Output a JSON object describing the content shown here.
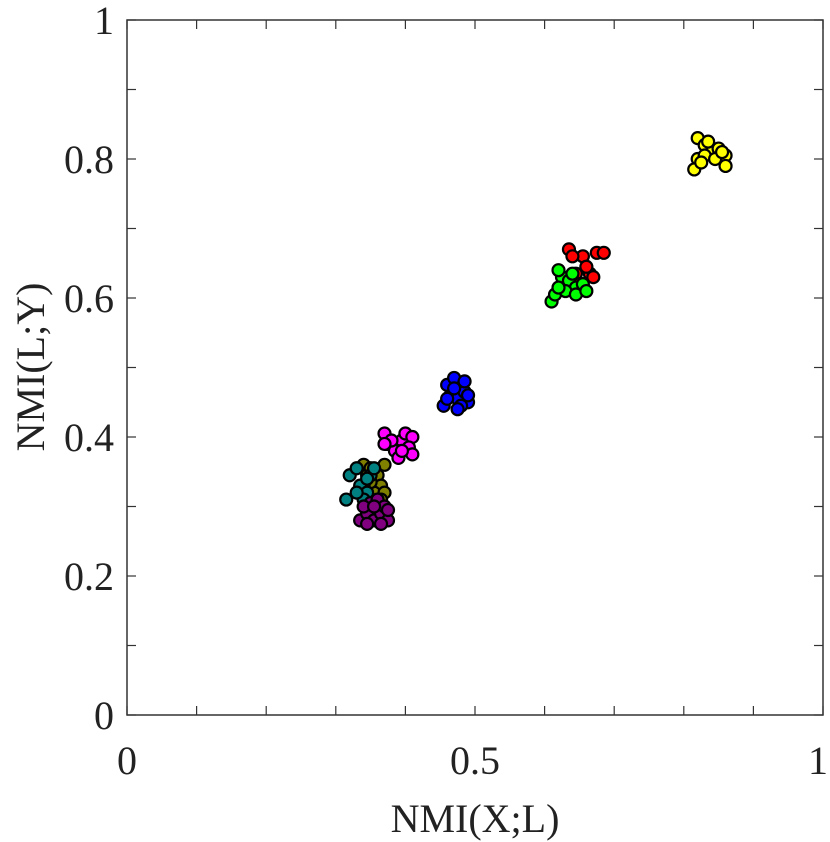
{
  "chart_data": {
    "type": "scatter",
    "title": "",
    "xlabel": "NMI(X;L)",
    "ylabel": "NMI(L;Y)",
    "xlim": [
      0,
      1
    ],
    "ylim": [
      0,
      1
    ],
    "x_ticks": [
      0,
      0.1,
      0.2,
      0.3,
      0.4,
      0.5,
      0.6,
      0.7,
      0.8,
      0.9,
      1
    ],
    "y_ticks": [
      0,
      0.1,
      0.2,
      0.3,
      0.4,
      0.5,
      0.6,
      0.7,
      0.8,
      0.9,
      1
    ],
    "x_tick_labels": [
      {
        "value": 0,
        "label": "0"
      },
      {
        "value": 0.5,
        "label": "0.5"
      },
      {
        "value": 1,
        "label": "1"
      }
    ],
    "y_tick_labels": [
      {
        "value": 0,
        "label": "0"
      },
      {
        "value": 0.2,
        "label": "0.2"
      },
      {
        "value": 0.4,
        "label": "0.4"
      },
      {
        "value": 0.6,
        "label": "0.6"
      },
      {
        "value": 0.8,
        "label": "0.8"
      },
      {
        "value": 1,
        "label": "1"
      }
    ],
    "grid": false,
    "series": [
      {
        "color": "#FFFF00",
        "points": [
          [
            0.82,
            0.83
          ],
          [
            0.83,
            0.82
          ],
          [
            0.84,
            0.81
          ],
          [
            0.85,
            0.815
          ],
          [
            0.86,
            0.805
          ],
          [
            0.82,
            0.8
          ],
          [
            0.83,
            0.805
          ],
          [
            0.845,
            0.8
          ],
          [
            0.86,
            0.79
          ],
          [
            0.815,
            0.785
          ],
          [
            0.825,
            0.795
          ],
          [
            0.855,
            0.81
          ],
          [
            0.835,
            0.825
          ]
        ]
      },
      {
        "color": "#FF0000",
        "points": [
          [
            0.635,
            0.67
          ],
          [
            0.655,
            0.66
          ],
          [
            0.675,
            0.665
          ],
          [
            0.665,
            0.635
          ],
          [
            0.645,
            0.635
          ],
          [
            0.67,
            0.63
          ],
          [
            0.66,
            0.645
          ],
          [
            0.64,
            0.66
          ],
          [
            0.65,
            0.62
          ],
          [
            0.685,
            0.665
          ]
        ]
      },
      {
        "color": "#00FF00",
        "points": [
          [
            0.61,
            0.595
          ],
          [
            0.615,
            0.605
          ],
          [
            0.625,
            0.63
          ],
          [
            0.635,
            0.625
          ],
          [
            0.645,
            0.615
          ],
          [
            0.62,
            0.64
          ],
          [
            0.64,
            0.635
          ],
          [
            0.655,
            0.62
          ],
          [
            0.63,
            0.61
          ],
          [
            0.645,
            0.605
          ],
          [
            0.66,
            0.61
          ],
          [
            0.62,
            0.615
          ]
        ]
      },
      {
        "color": "#0000FF",
        "points": [
          [
            0.455,
            0.445
          ],
          [
            0.465,
            0.46
          ],
          [
            0.475,
            0.455
          ],
          [
            0.485,
            0.465
          ],
          [
            0.49,
            0.45
          ],
          [
            0.46,
            0.475
          ],
          [
            0.47,
            0.485
          ],
          [
            0.48,
            0.445
          ],
          [
            0.485,
            0.48
          ],
          [
            0.47,
            0.47
          ],
          [
            0.46,
            0.455
          ],
          [
            0.49,
            0.46
          ],
          [
            0.475,
            0.44
          ]
        ]
      },
      {
        "color": "#FF00FF",
        "points": [
          [
            0.37,
            0.405
          ],
          [
            0.375,
            0.39
          ],
          [
            0.385,
            0.38
          ],
          [
            0.395,
            0.395
          ],
          [
            0.4,
            0.405
          ],
          [
            0.41,
            0.4
          ],
          [
            0.39,
            0.37
          ],
          [
            0.405,
            0.385
          ],
          [
            0.38,
            0.395
          ],
          [
            0.41,
            0.375
          ],
          [
            0.395,
            0.38
          ],
          [
            0.37,
            0.39
          ]
        ]
      },
      {
        "color": "#808000",
        "points": [
          [
            0.34,
            0.36
          ],
          [
            0.345,
            0.345
          ],
          [
            0.35,
            0.355
          ],
          [
            0.36,
            0.345
          ],
          [
            0.365,
            0.33
          ],
          [
            0.37,
            0.36
          ],
          [
            0.355,
            0.32
          ],
          [
            0.37,
            0.32
          ],
          [
            0.35,
            0.335
          ],
          [
            0.34,
            0.33
          ],
          [
            0.365,
            0.31
          ]
        ]
      },
      {
        "color": "#008080",
        "points": [
          [
            0.315,
            0.31
          ],
          [
            0.32,
            0.345
          ],
          [
            0.33,
            0.355
          ],
          [
            0.335,
            0.33
          ],
          [
            0.345,
            0.32
          ],
          [
            0.34,
            0.31
          ],
          [
            0.35,
            0.345
          ],
          [
            0.355,
            0.355
          ],
          [
            0.345,
            0.34
          ],
          [
            0.33,
            0.32
          ]
        ]
      },
      {
        "color": "#800080",
        "points": [
          [
            0.335,
            0.28
          ],
          [
            0.345,
            0.29
          ],
          [
            0.355,
            0.28
          ],
          [
            0.365,
            0.29
          ],
          [
            0.375,
            0.28
          ],
          [
            0.35,
            0.305
          ],
          [
            0.36,
            0.31
          ],
          [
            0.37,
            0.3
          ],
          [
            0.34,
            0.3
          ],
          [
            0.365,
            0.275
          ],
          [
            0.345,
            0.275
          ],
          [
            0.375,
            0.295
          ],
          [
            0.355,
            0.3
          ]
        ]
      }
    ]
  }
}
